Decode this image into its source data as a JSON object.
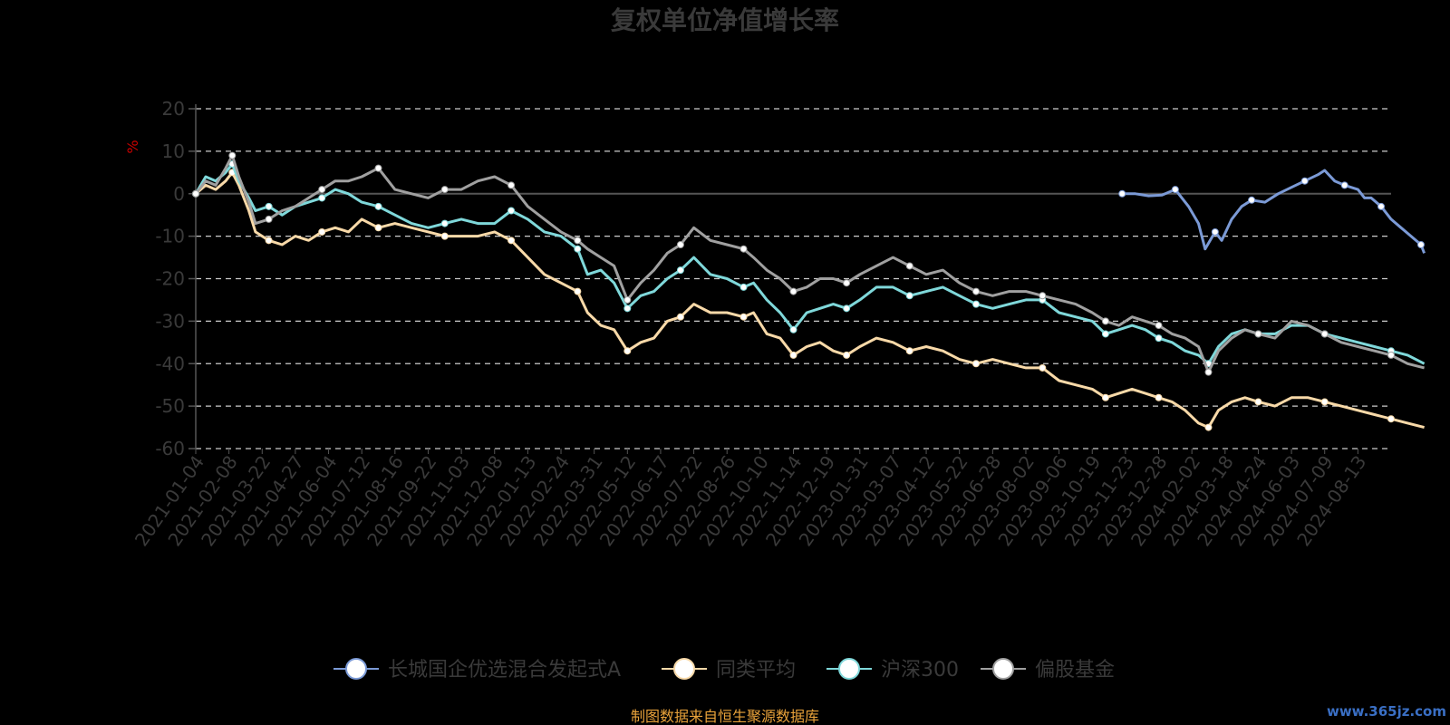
{
  "chart_data": {
    "type": "line",
    "title": "复权单位净值增长率",
    "ylabel": "%",
    "ylim": [
      -60,
      20
    ],
    "yticks": [
      20,
      10,
      0,
      -10,
      -20,
      -30,
      -40,
      -50,
      -60
    ],
    "grid": true,
    "legend_position": "bottom",
    "x_ticks": [
      "2021-01-04",
      "2021-02-08",
      "2021-03-22",
      "2021-04-27",
      "2021-06-04",
      "2021-07-12",
      "2021-08-16",
      "2021-09-22",
      "2021-11-03",
      "2021-12-08",
      "2022-01-13",
      "2022-02-24",
      "2022-03-31",
      "2022-05-12",
      "2022-06-17",
      "2022-07-22",
      "2022-08-26",
      "2022-10-10",
      "2022-11-14",
      "2022-12-19",
      "2023-01-31",
      "2023-03-07",
      "2023-04-12",
      "2023-05-22",
      "2023-06-28",
      "2023-08-02",
      "2023-09-06",
      "2023-10-19",
      "2023-11-23",
      "2023-12-28",
      "2024-02-02",
      "2024-03-18",
      "2024-04-24",
      "2024-06-03",
      "2024-07-09",
      "2024-08-13"
    ],
    "x_end": 36,
    "series": [
      {
        "name": "长城国企优选混合发起式A",
        "color": "#7b9ad6",
        "points": [
          [
            27.9,
            0
          ],
          [
            28.3,
            0
          ],
          [
            28.7,
            -0.5
          ],
          [
            29.1,
            -0.3
          ],
          [
            29.5,
            1
          ],
          [
            29.9,
            -3
          ],
          [
            30.2,
            -7
          ],
          [
            30.4,
            -13
          ],
          [
            30.7,
            -9
          ],
          [
            30.9,
            -11
          ],
          [
            31.2,
            -6
          ],
          [
            31.5,
            -3
          ],
          [
            31.8,
            -1.5
          ],
          [
            32.2,
            -2
          ],
          [
            32.6,
            0
          ],
          [
            33.0,
            1.5
          ],
          [
            33.4,
            3
          ],
          [
            33.8,
            4.5
          ],
          [
            34.0,
            5.5
          ],
          [
            34.3,
            3
          ],
          [
            34.6,
            2
          ],
          [
            35.0,
            1
          ],
          [
            35.2,
            -1
          ],
          [
            35.4,
            -1
          ],
          [
            35.7,
            -3
          ],
          [
            36.0,
            -6
          ],
          [
            36.3,
            -8
          ],
          [
            36.6,
            -10
          ],
          [
            36.9,
            -12
          ],
          [
            37.0,
            -14
          ]
        ]
      },
      {
        "name": "同类平均",
        "color": "#f8d9a8",
        "points": [
          [
            0,
            0
          ],
          [
            0.3,
            2
          ],
          [
            0.6,
            1
          ],
          [
            0.9,
            3
          ],
          [
            1.1,
            5
          ],
          [
            1.3,
            2
          ],
          [
            1.6,
            -4
          ],
          [
            1.8,
            -9
          ],
          [
            2.2,
            -11
          ],
          [
            2.6,
            -12
          ],
          [
            3.0,
            -10
          ],
          [
            3.4,
            -11
          ],
          [
            3.8,
            -9
          ],
          [
            4.2,
            -8
          ],
          [
            4.6,
            -9
          ],
          [
            5.0,
            -6
          ],
          [
            5.5,
            -8
          ],
          [
            6.0,
            -7
          ],
          [
            6.5,
            -8
          ],
          [
            7.0,
            -9
          ],
          [
            7.5,
            -10
          ],
          [
            8.0,
            -10
          ],
          [
            8.5,
            -10
          ],
          [
            9.0,
            -9
          ],
          [
            9.5,
            -11
          ],
          [
            10.0,
            -15
          ],
          [
            10.5,
            -19
          ],
          [
            11.0,
            -21
          ],
          [
            11.5,
            -23
          ],
          [
            11.8,
            -28
          ],
          [
            12.2,
            -31
          ],
          [
            12.6,
            -32
          ],
          [
            13.0,
            -37
          ],
          [
            13.4,
            -35
          ],
          [
            13.8,
            -34
          ],
          [
            14.2,
            -30
          ],
          [
            14.6,
            -29
          ],
          [
            15.0,
            -26
          ],
          [
            15.5,
            -28
          ],
          [
            16.0,
            -28
          ],
          [
            16.5,
            -29
          ],
          [
            16.8,
            -28
          ],
          [
            17.2,
            -33
          ],
          [
            17.6,
            -34
          ],
          [
            18.0,
            -38
          ],
          [
            18.4,
            -36
          ],
          [
            18.8,
            -35
          ],
          [
            19.2,
            -37
          ],
          [
            19.6,
            -38
          ],
          [
            20.0,
            -36
          ],
          [
            20.5,
            -34
          ],
          [
            21.0,
            -35
          ],
          [
            21.5,
            -37
          ],
          [
            22.0,
            -36
          ],
          [
            22.5,
            -37
          ],
          [
            23.0,
            -39
          ],
          [
            23.5,
            -40
          ],
          [
            24.0,
            -39
          ],
          [
            24.5,
            -40
          ],
          [
            25.0,
            -41
          ],
          [
            25.5,
            -41
          ],
          [
            26.0,
            -44
          ],
          [
            26.5,
            -45
          ],
          [
            27.0,
            -46
          ],
          [
            27.4,
            -48
          ],
          [
            27.8,
            -47
          ],
          [
            28.2,
            -46
          ],
          [
            28.6,
            -47
          ],
          [
            29.0,
            -48
          ],
          [
            29.4,
            -49
          ],
          [
            29.8,
            -51
          ],
          [
            30.2,
            -54
          ],
          [
            30.5,
            -55
          ],
          [
            30.8,
            -51
          ],
          [
            31.2,
            -49
          ],
          [
            31.6,
            -48
          ],
          [
            32.0,
            -49
          ],
          [
            32.5,
            -50
          ],
          [
            33.0,
            -48
          ],
          [
            33.5,
            -48
          ],
          [
            34.0,
            -49
          ],
          [
            34.5,
            -50
          ],
          [
            35.0,
            -51
          ],
          [
            35.5,
            -52
          ],
          [
            36.0,
            -53
          ],
          [
            36.5,
            -54
          ],
          [
            37.0,
            -55
          ]
        ]
      },
      {
        "name": "沪深300",
        "color": "#7fd8da",
        "points": [
          [
            0,
            0
          ],
          [
            0.3,
            4
          ],
          [
            0.6,
            3
          ],
          [
            0.9,
            5
          ],
          [
            1.1,
            7
          ],
          [
            1.3,
            3
          ],
          [
            1.6,
            -1
          ],
          [
            1.8,
            -4
          ],
          [
            2.2,
            -3
          ],
          [
            2.6,
            -5
          ],
          [
            3.0,
            -3
          ],
          [
            3.4,
            -2
          ],
          [
            3.8,
            -1
          ],
          [
            4.2,
            1
          ],
          [
            4.6,
            0
          ],
          [
            5.0,
            -2
          ],
          [
            5.5,
            -3
          ],
          [
            6.0,
            -5
          ],
          [
            6.5,
            -7
          ],
          [
            7.0,
            -8
          ],
          [
            7.5,
            -7
          ],
          [
            8.0,
            -6
          ],
          [
            8.5,
            -7
          ],
          [
            9.0,
            -7
          ],
          [
            9.5,
            -4
          ],
          [
            10.0,
            -6
          ],
          [
            10.5,
            -9
          ],
          [
            11.0,
            -10
          ],
          [
            11.5,
            -13
          ],
          [
            11.8,
            -19
          ],
          [
            12.2,
            -18
          ],
          [
            12.6,
            -21
          ],
          [
            13.0,
            -27
          ],
          [
            13.4,
            -24
          ],
          [
            13.8,
            -23
          ],
          [
            14.2,
            -20
          ],
          [
            14.6,
            -18
          ],
          [
            15.0,
            -15
          ],
          [
            15.5,
            -19
          ],
          [
            16.0,
            -20
          ],
          [
            16.5,
            -22
          ],
          [
            16.8,
            -21
          ],
          [
            17.2,
            -25
          ],
          [
            17.6,
            -28
          ],
          [
            18.0,
            -32
          ],
          [
            18.4,
            -28
          ],
          [
            18.8,
            -27
          ],
          [
            19.2,
            -26
          ],
          [
            19.6,
            -27
          ],
          [
            20.0,
            -25
          ],
          [
            20.5,
            -22
          ],
          [
            21.0,
            -22
          ],
          [
            21.5,
            -24
          ],
          [
            22.0,
            -23
          ],
          [
            22.5,
            -22
          ],
          [
            23.0,
            -24
          ],
          [
            23.5,
            -26
          ],
          [
            24.0,
            -27
          ],
          [
            24.5,
            -26
          ],
          [
            25.0,
            -25
          ],
          [
            25.5,
            -25
          ],
          [
            26.0,
            -28
          ],
          [
            26.5,
            -29
          ],
          [
            27.0,
            -30
          ],
          [
            27.4,
            -33
          ],
          [
            27.8,
            -32
          ],
          [
            28.2,
            -31
          ],
          [
            28.6,
            -32
          ],
          [
            29.0,
            -34
          ],
          [
            29.4,
            -35
          ],
          [
            29.8,
            -37
          ],
          [
            30.2,
            -38
          ],
          [
            30.5,
            -40
          ],
          [
            30.8,
            -36
          ],
          [
            31.2,
            -33
          ],
          [
            31.6,
            -32
          ],
          [
            32.0,
            -33
          ],
          [
            32.5,
            -33
          ],
          [
            33.0,
            -31
          ],
          [
            33.5,
            -31
          ],
          [
            34.0,
            -33
          ],
          [
            34.5,
            -34
          ],
          [
            35.0,
            -35
          ],
          [
            35.5,
            -36
          ],
          [
            36.0,
            -37
          ],
          [
            36.5,
            -38
          ],
          [
            37.0,
            -40
          ]
        ]
      },
      {
        "name": "偏股基金",
        "color": "#a0a0a0",
        "points": [
          [
            0,
            0
          ],
          [
            0.3,
            3
          ],
          [
            0.6,
            2
          ],
          [
            0.9,
            6
          ],
          [
            1.1,
            9
          ],
          [
            1.3,
            4
          ],
          [
            1.6,
            -2
          ],
          [
            1.8,
            -7
          ],
          [
            2.2,
            -6
          ],
          [
            2.6,
            -4
          ],
          [
            3.0,
            -3
          ],
          [
            3.4,
            -1
          ],
          [
            3.8,
            1
          ],
          [
            4.2,
            3
          ],
          [
            4.6,
            3
          ],
          [
            5.0,
            4
          ],
          [
            5.5,
            6
          ],
          [
            6.0,
            1
          ],
          [
            6.5,
            0
          ],
          [
            7.0,
            -1
          ],
          [
            7.5,
            1
          ],
          [
            8.0,
            1
          ],
          [
            8.5,
            3
          ],
          [
            9.0,
            4
          ],
          [
            9.5,
            2
          ],
          [
            10.0,
            -3
          ],
          [
            10.5,
            -6
          ],
          [
            11.0,
            -9
          ],
          [
            11.5,
            -11
          ],
          [
            11.8,
            -13
          ],
          [
            12.2,
            -15
          ],
          [
            12.6,
            -17
          ],
          [
            13.0,
            -25
          ],
          [
            13.4,
            -21
          ],
          [
            13.8,
            -18
          ],
          [
            14.2,
            -14
          ],
          [
            14.6,
            -12
          ],
          [
            15.0,
            -8
          ],
          [
            15.5,
            -11
          ],
          [
            16.0,
            -12
          ],
          [
            16.5,
            -13
          ],
          [
            16.8,
            -15
          ],
          [
            17.2,
            -18
          ],
          [
            17.6,
            -20
          ],
          [
            18.0,
            -23
          ],
          [
            18.4,
            -22
          ],
          [
            18.8,
            -20
          ],
          [
            19.2,
            -20
          ],
          [
            19.6,
            -21
          ],
          [
            20.0,
            -19
          ],
          [
            20.5,
            -17
          ],
          [
            21.0,
            -15
          ],
          [
            21.5,
            -17
          ],
          [
            22.0,
            -19
          ],
          [
            22.5,
            -18
          ],
          [
            23.0,
            -21
          ],
          [
            23.5,
            -23
          ],
          [
            24.0,
            -24
          ],
          [
            24.5,
            -23
          ],
          [
            25.0,
            -23
          ],
          [
            25.5,
            -24
          ],
          [
            26.0,
            -25
          ],
          [
            26.5,
            -26
          ],
          [
            27.0,
            -28
          ],
          [
            27.4,
            -30
          ],
          [
            27.8,
            -31
          ],
          [
            28.2,
            -29
          ],
          [
            28.6,
            -30
          ],
          [
            29.0,
            -31
          ],
          [
            29.4,
            -33
          ],
          [
            29.8,
            -34
          ],
          [
            30.2,
            -36
          ],
          [
            30.5,
            -42
          ],
          [
            30.8,
            -37
          ],
          [
            31.2,
            -34
          ],
          [
            31.6,
            -32
          ],
          [
            32.0,
            -33
          ],
          [
            32.5,
            -34
          ],
          [
            33.0,
            -30
          ],
          [
            33.5,
            -31
          ],
          [
            34.0,
            -33
          ],
          [
            34.5,
            -35
          ],
          [
            35.0,
            -36
          ],
          [
            35.5,
            -37
          ],
          [
            36.0,
            -38
          ],
          [
            36.5,
            -40
          ],
          [
            37.0,
            -41
          ]
        ]
      }
    ],
    "source_note": "制图数据来自恒生聚源数据库",
    "watermark": "www.365jz.com"
  }
}
